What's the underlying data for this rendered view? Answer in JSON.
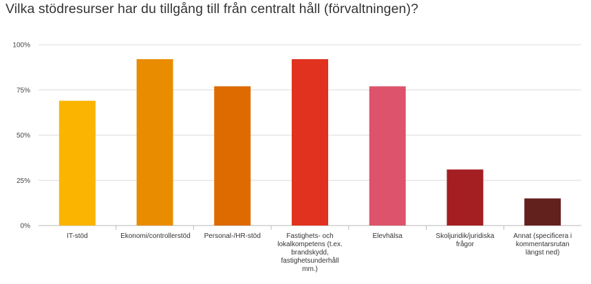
{
  "title": "Vilka stödresurser har du tillgång till från centralt håll (förvaltningen)?",
  "chart_data": {
    "type": "bar",
    "title": "Vilka stödresurser har du tillgång till från centralt håll (förvaltningen)?",
    "categories": [
      "IT-stöd",
      "Ekonomi/controllerstöd",
      "Personal-/HR-stöd",
      "Fastighets- och lokalkompetens (t.ex. brandskydd, fastighetsunderhåll mm.)",
      "Elevhälsa",
      "Skoljuridik/juridiska frågor",
      "Annat (specificera i kommentarsrutan längst ned)"
    ],
    "values": [
      69,
      92,
      77,
      92,
      77,
      31,
      15
    ],
    "colors": [
      "#fbb400",
      "#ea8c00",
      "#dd6b00",
      "#e0321f",
      "#dc536b",
      "#a31f22",
      "#63211e"
    ],
    "yticks": [
      "0%",
      "25%",
      "50%",
      "75%",
      "100%"
    ],
    "ylim": [
      0,
      100
    ],
    "grid": true,
    "xlabel": "",
    "ylabel": ""
  }
}
